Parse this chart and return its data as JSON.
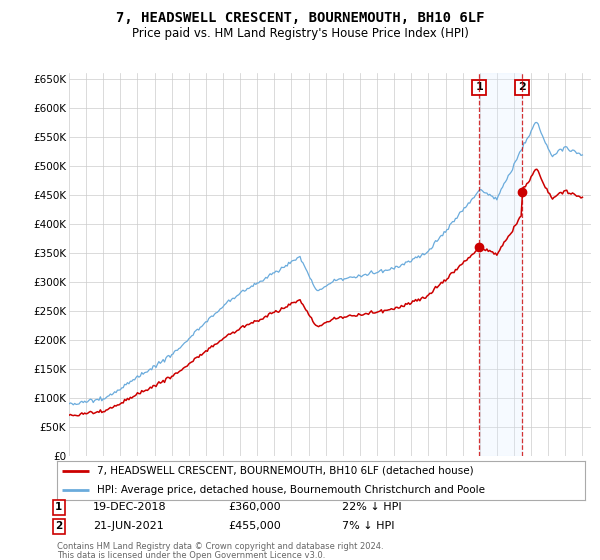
{
  "title": "7, HEADSWELL CRESCENT, BOURNEMOUTH, BH10 6LF",
  "subtitle": "Price paid vs. HM Land Registry's House Price Index (HPI)",
  "ylim": [
    0,
    660000
  ],
  "yticks": [
    0,
    50000,
    100000,
    150000,
    200000,
    250000,
    300000,
    350000,
    400000,
    450000,
    500000,
    550000,
    600000,
    650000
  ],
  "ytick_labels": [
    "£0",
    "£50K",
    "£100K",
    "£150K",
    "£200K",
    "£250K",
    "£300K",
    "£350K",
    "£400K",
    "£450K",
    "£500K",
    "£550K",
    "£600K",
    "£650K"
  ],
  "sale1_date_x": 2018.96,
  "sale1_price": 360000,
  "sale1_label": "19-DEC-2018",
  "sale1_price_str": "£360,000",
  "sale1_pct": "22% ↓ HPI",
  "sale2_date_x": 2021.47,
  "sale2_price": 455000,
  "sale2_label": "21-JUN-2021",
  "sale2_price_str": "£455,000",
  "sale2_pct": "7% ↓ HPI",
  "legend1": "7, HEADSWELL CRESCENT, BOURNEMOUTH, BH10 6LF (detached house)",
  "legend2": "HPI: Average price, detached house, Bournemouth Christchurch and Poole",
  "footer1": "Contains HM Land Registry data © Crown copyright and database right 2024.",
  "footer2": "This data is licensed under the Open Government Licence v3.0.",
  "hpi_color": "#6aabdc",
  "price_color": "#cc0000",
  "bg_color": "#ffffff",
  "grid_color": "#cccccc",
  "marker_box_color": "#cc0000",
  "shade_color": "#ddeeff",
  "xmin": 1995,
  "xmax": 2025.5
}
